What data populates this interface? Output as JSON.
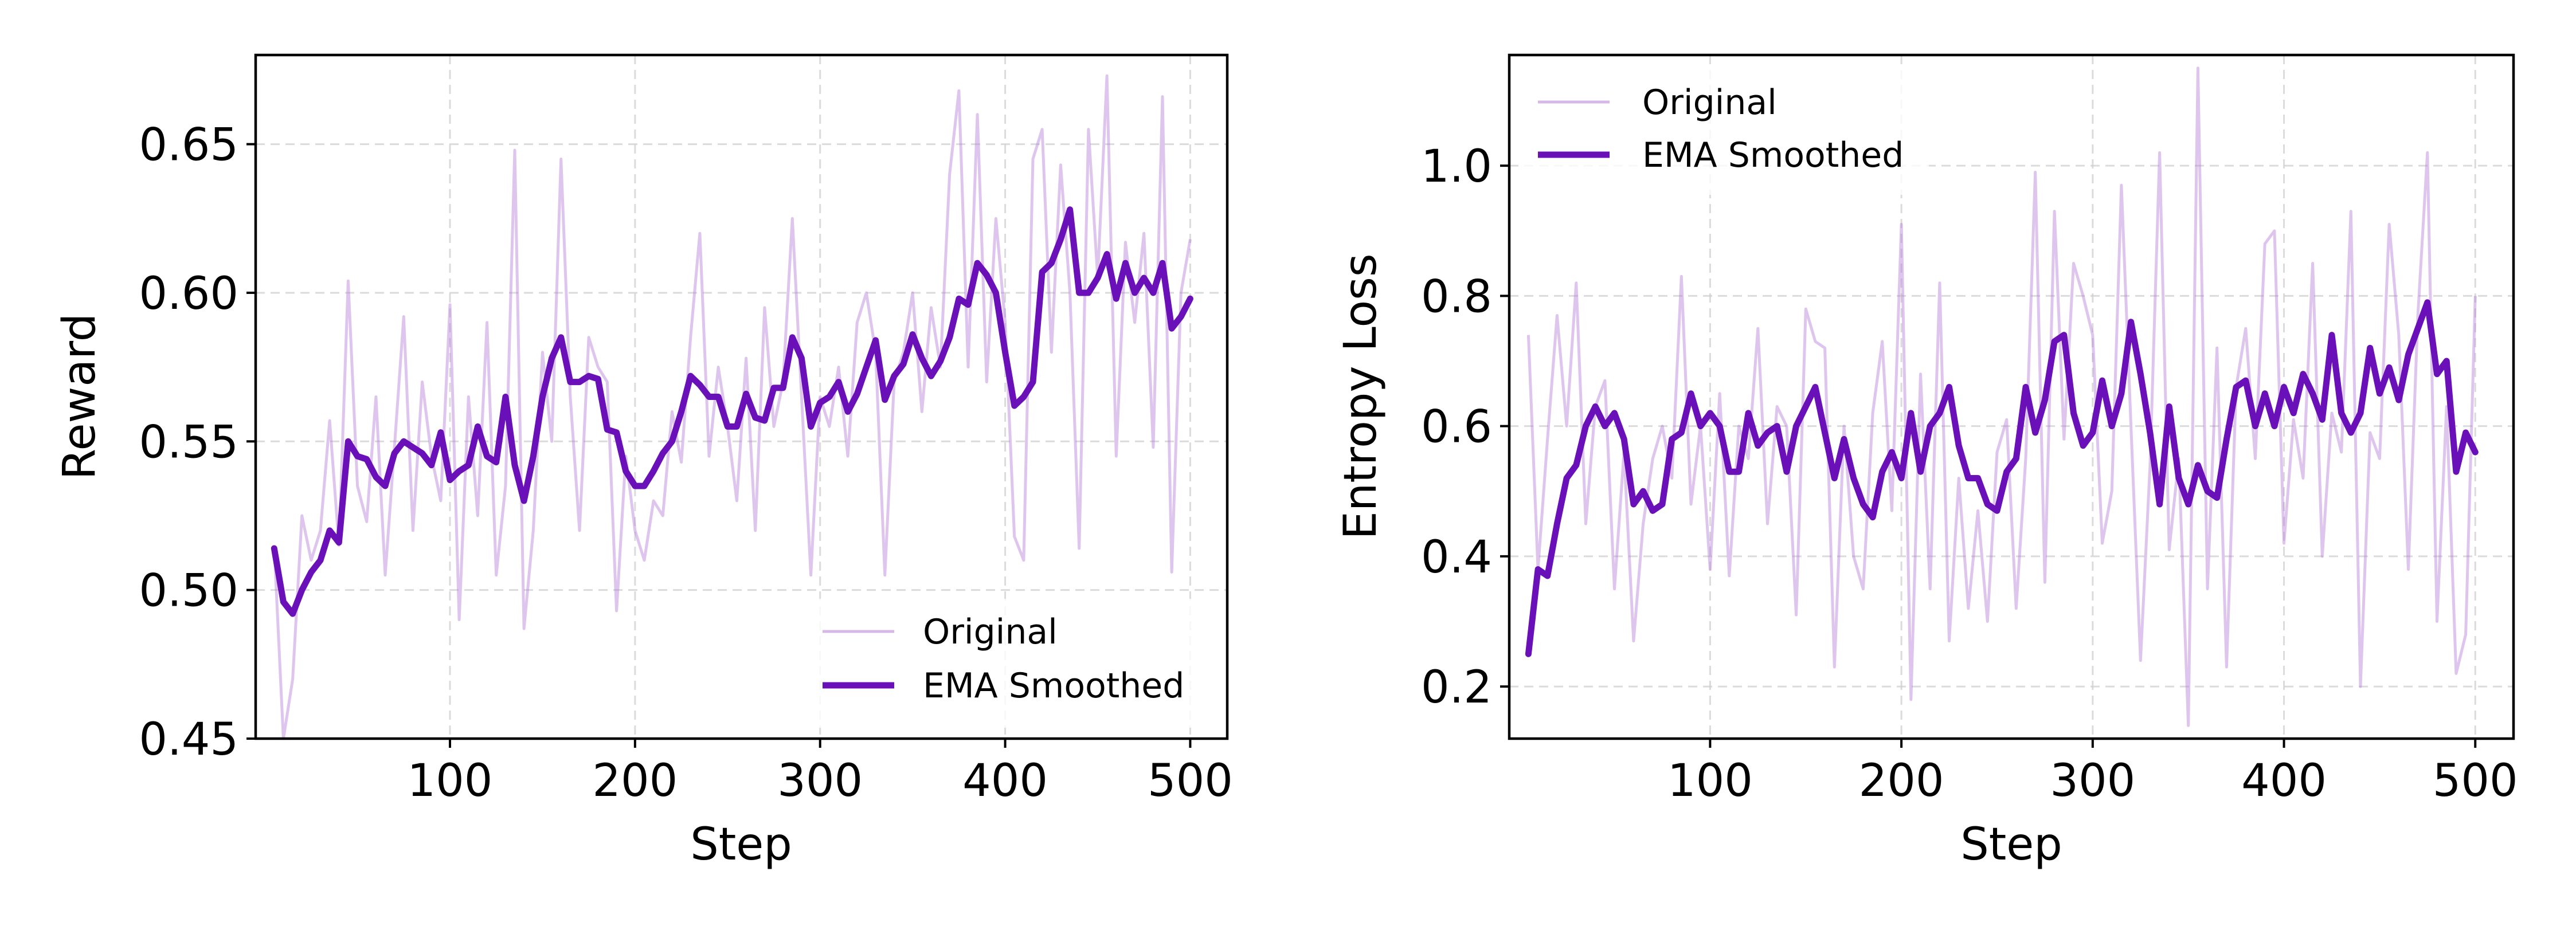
{
  "colors": {
    "original": "#b57fd8",
    "ema": "#6a10b8"
  },
  "chart_data": [
    {
      "type": "line",
      "xlabel": "Step",
      "ylabel": "Reward",
      "xlim": [
        -5,
        520
      ],
      "ylim": [
        0.45,
        0.68
      ],
      "xticks": [
        100,
        200,
        300,
        400,
        500
      ],
      "yticks": [
        0.45,
        0.5,
        0.55,
        0.6,
        0.65
      ],
      "ytick_labels": [
        "0.45",
        "0.50",
        "0.55",
        "0.60",
        "0.65"
      ],
      "grid": true,
      "legend_position": "bottom-right",
      "series": [
        {
          "name": "Original",
          "style": "thin",
          "x": [
            5,
            10,
            15,
            20,
            25,
            30,
            35,
            40,
            45,
            50,
            55,
            60,
            65,
            70,
            75,
            80,
            85,
            90,
            95,
            100,
            105,
            110,
            115,
            120,
            125,
            130,
            135,
            140,
            145,
            150,
            155,
            160,
            165,
            170,
            175,
            180,
            185,
            190,
            195,
            200,
            205,
            210,
            215,
            220,
            225,
            230,
            235,
            240,
            245,
            250,
            255,
            260,
            265,
            270,
            275,
            280,
            285,
            290,
            295,
            300,
            305,
            310,
            315,
            320,
            325,
            330,
            335,
            340,
            345,
            350,
            355,
            360,
            365,
            370,
            375,
            380,
            385,
            390,
            395,
            400,
            405,
            410,
            415,
            420,
            425,
            430,
            435,
            440,
            445,
            450,
            455,
            460,
            465,
            470,
            475,
            480,
            485,
            490,
            495,
            500
          ],
          "values": [
            0.515,
            0.45,
            0.47,
            0.525,
            0.51,
            0.52,
            0.557,
            0.515,
            0.604,
            0.535,
            0.523,
            0.565,
            0.505,
            0.548,
            0.592,
            0.52,
            0.57,
            0.545,
            0.53,
            0.596,
            0.49,
            0.565,
            0.525,
            0.59,
            0.505,
            0.535,
            0.648,
            0.487,
            0.52,
            0.58,
            0.55,
            0.645,
            0.565,
            0.52,
            0.585,
            0.575,
            0.57,
            0.493,
            0.545,
            0.52,
            0.51,
            0.53,
            0.525,
            0.56,
            0.543,
            0.585,
            0.62,
            0.545,
            0.575,
            0.555,
            0.53,
            0.578,
            0.52,
            0.595,
            0.555,
            0.57,
            0.625,
            0.565,
            0.505,
            0.565,
            0.555,
            0.575,
            0.545,
            0.59,
            0.6,
            0.58,
            0.505,
            0.57,
            0.58,
            0.6,
            0.56,
            0.595,
            0.575,
            0.64,
            0.668,
            0.575,
            0.66,
            0.57,
            0.625,
            0.59,
            0.518,
            0.51,
            0.645,
            0.655,
            0.58,
            0.643,
            0.6,
            0.514,
            0.655,
            0.605,
            0.673,
            0.545,
            0.617,
            0.59,
            0.62,
            0.548,
            0.666,
            0.506,
            0.6,
            0.618
          ]
        },
        {
          "name": "EMA Smoothed",
          "style": "thick",
          "x": [
            5,
            10,
            15,
            20,
            25,
            30,
            35,
            40,
            45,
            50,
            55,
            60,
            65,
            70,
            75,
            80,
            85,
            90,
            95,
            100,
            105,
            110,
            115,
            120,
            125,
            130,
            135,
            140,
            145,
            150,
            155,
            160,
            165,
            170,
            175,
            180,
            185,
            190,
            195,
            200,
            205,
            210,
            215,
            220,
            225,
            230,
            235,
            240,
            245,
            250,
            255,
            260,
            265,
            270,
            275,
            280,
            285,
            290,
            295,
            300,
            305,
            310,
            315,
            320,
            325,
            330,
            335,
            340,
            345,
            350,
            355,
            360,
            365,
            370,
            375,
            380,
            385,
            390,
            395,
            400,
            405,
            410,
            415,
            420,
            425,
            430,
            435,
            440,
            445,
            450,
            455,
            460,
            465,
            470,
            475,
            480,
            485,
            490,
            495,
            500
          ],
          "values": [
            0.514,
            0.496,
            0.492,
            0.5,
            0.506,
            0.51,
            0.52,
            0.516,
            0.55,
            0.545,
            0.544,
            0.538,
            0.535,
            0.546,
            0.55,
            0.548,
            0.546,
            0.542,
            0.553,
            0.537,
            0.54,
            0.542,
            0.555,
            0.545,
            0.543,
            0.565,
            0.542,
            0.53,
            0.545,
            0.565,
            0.578,
            0.585,
            0.57,
            0.57,
            0.572,
            0.571,
            0.554,
            0.553,
            0.54,
            0.535,
            0.535,
            0.54,
            0.546,
            0.55,
            0.56,
            0.572,
            0.569,
            0.565,
            0.565,
            0.555,
            0.555,
            0.566,
            0.558,
            0.557,
            0.568,
            0.568,
            0.585,
            0.578,
            0.555,
            0.563,
            0.565,
            0.57,
            0.56,
            0.566,
            0.575,
            0.584,
            0.564,
            0.572,
            0.576,
            0.586,
            0.578,
            0.572,
            0.577,
            0.585,
            0.598,
            0.596,
            0.61,
            0.606,
            0.6,
            0.58,
            0.562,
            0.565,
            0.57,
            0.607,
            0.61,
            0.618,
            0.628,
            0.6,
            0.6,
            0.605,
            0.613,
            0.598,
            0.61,
            0.6,
            0.605,
            0.6,
            0.61,
            0.588,
            0.592,
            0.598
          ]
        }
      ]
    },
    {
      "type": "line",
      "xlabel": "Step",
      "ylabel": "Entropy Loss",
      "xlim": [
        -5,
        520
      ],
      "ylim": [
        0.12,
        1.17
      ],
      "xticks": [
        100,
        200,
        300,
        400,
        500
      ],
      "yticks": [
        0.2,
        0.4,
        0.6,
        0.8,
        1.0
      ],
      "ytick_labels": [
        "0.2",
        "0.4",
        "0.6",
        "0.8",
        "1.0"
      ],
      "grid": true,
      "legend_position": "top-left",
      "series": [
        {
          "name": "Original",
          "style": "thin",
          "x": [
            5,
            10,
            15,
            20,
            25,
            30,
            35,
            40,
            45,
            50,
            55,
            60,
            65,
            70,
            75,
            80,
            85,
            90,
            95,
            100,
            105,
            110,
            115,
            120,
            125,
            130,
            135,
            140,
            145,
            150,
            155,
            160,
            165,
            170,
            175,
            180,
            185,
            190,
            195,
            200,
            205,
            210,
            215,
            220,
            225,
            230,
            235,
            240,
            245,
            250,
            255,
            260,
            265,
            270,
            275,
            280,
            285,
            290,
            295,
            300,
            305,
            310,
            315,
            320,
            325,
            330,
            335,
            340,
            345,
            350,
            355,
            360,
            365,
            370,
            375,
            380,
            385,
            390,
            395,
            400,
            405,
            410,
            415,
            420,
            425,
            430,
            435,
            440,
            445,
            450,
            455,
            460,
            465,
            470,
            475,
            480,
            485,
            490,
            495,
            500
          ],
          "values": [
            0.74,
            0.38,
            0.58,
            0.77,
            0.6,
            0.82,
            0.45,
            0.63,
            0.67,
            0.35,
            0.56,
            0.27,
            0.45,
            0.55,
            0.6,
            0.52,
            0.83,
            0.48,
            0.6,
            0.38,
            0.65,
            0.37,
            0.6,
            0.55,
            0.75,
            0.45,
            0.63,
            0.6,
            0.31,
            0.78,
            0.73,
            0.72,
            0.23,
            0.6,
            0.4,
            0.35,
            0.62,
            0.73,
            0.47,
            0.91,
            0.18,
            0.68,
            0.35,
            0.82,
            0.27,
            0.52,
            0.32,
            0.47,
            0.3,
            0.56,
            0.61,
            0.32,
            0.55,
            0.99,
            0.36,
            0.93,
            0.58,
            0.85,
            0.8,
            0.74,
            0.42,
            0.5,
            0.97,
            0.6,
            0.24,
            0.54,
            1.02,
            0.41,
            0.55,
            0.14,
            1.15,
            0.35,
            0.72,
            0.23,
            0.66,
            0.75,
            0.55,
            0.88,
            0.9,
            0.42,
            0.61,
            0.52,
            0.85,
            0.4,
            0.62,
            0.56,
            0.93,
            0.2,
            0.59,
            0.55,
            0.91,
            0.74,
            0.38,
            0.77,
            1.02,
            0.3,
            0.63,
            0.22,
            0.28,
            0.8
          ]
        },
        {
          "name": "EMA Smoothed",
          "style": "thick",
          "x": [
            5,
            10,
            15,
            20,
            25,
            30,
            35,
            40,
            45,
            50,
            55,
            60,
            65,
            70,
            75,
            80,
            85,
            90,
            95,
            100,
            105,
            110,
            115,
            120,
            125,
            130,
            135,
            140,
            145,
            150,
            155,
            160,
            165,
            170,
            175,
            180,
            185,
            190,
            195,
            200,
            205,
            210,
            215,
            220,
            225,
            230,
            235,
            240,
            245,
            250,
            255,
            260,
            265,
            270,
            275,
            280,
            285,
            290,
            295,
            300,
            305,
            310,
            315,
            320,
            325,
            330,
            335,
            340,
            345,
            350,
            355,
            360,
            365,
            370,
            375,
            380,
            385,
            390,
            395,
            400,
            405,
            410,
            415,
            420,
            425,
            430,
            435,
            440,
            445,
            450,
            455,
            460,
            465,
            470,
            475,
            480,
            485,
            490,
            495,
            500
          ],
          "values": [
            0.25,
            0.38,
            0.37,
            0.45,
            0.52,
            0.54,
            0.6,
            0.63,
            0.6,
            0.62,
            0.58,
            0.48,
            0.5,
            0.47,
            0.48,
            0.58,
            0.59,
            0.65,
            0.6,
            0.62,
            0.6,
            0.53,
            0.53,
            0.62,
            0.57,
            0.59,
            0.6,
            0.53,
            0.6,
            0.63,
            0.66,
            0.59,
            0.52,
            0.58,
            0.52,
            0.48,
            0.46,
            0.53,
            0.56,
            0.52,
            0.62,
            0.53,
            0.6,
            0.62,
            0.66,
            0.57,
            0.52,
            0.52,
            0.48,
            0.47,
            0.53,
            0.55,
            0.66,
            0.59,
            0.64,
            0.73,
            0.74,
            0.62,
            0.57,
            0.59,
            0.67,
            0.6,
            0.65,
            0.76,
            0.68,
            0.59,
            0.48,
            0.63,
            0.52,
            0.48,
            0.54,
            0.5,
            0.49,
            0.58,
            0.66,
            0.67,
            0.6,
            0.65,
            0.6,
            0.66,
            0.62,
            0.68,
            0.65,
            0.61,
            0.74,
            0.62,
            0.59,
            0.62,
            0.72,
            0.65,
            0.69,
            0.64,
            0.71,
            0.75,
            0.79,
            0.68,
            0.7,
            0.53,
            0.59,
            0.56
          ]
        }
      ]
    }
  ]
}
